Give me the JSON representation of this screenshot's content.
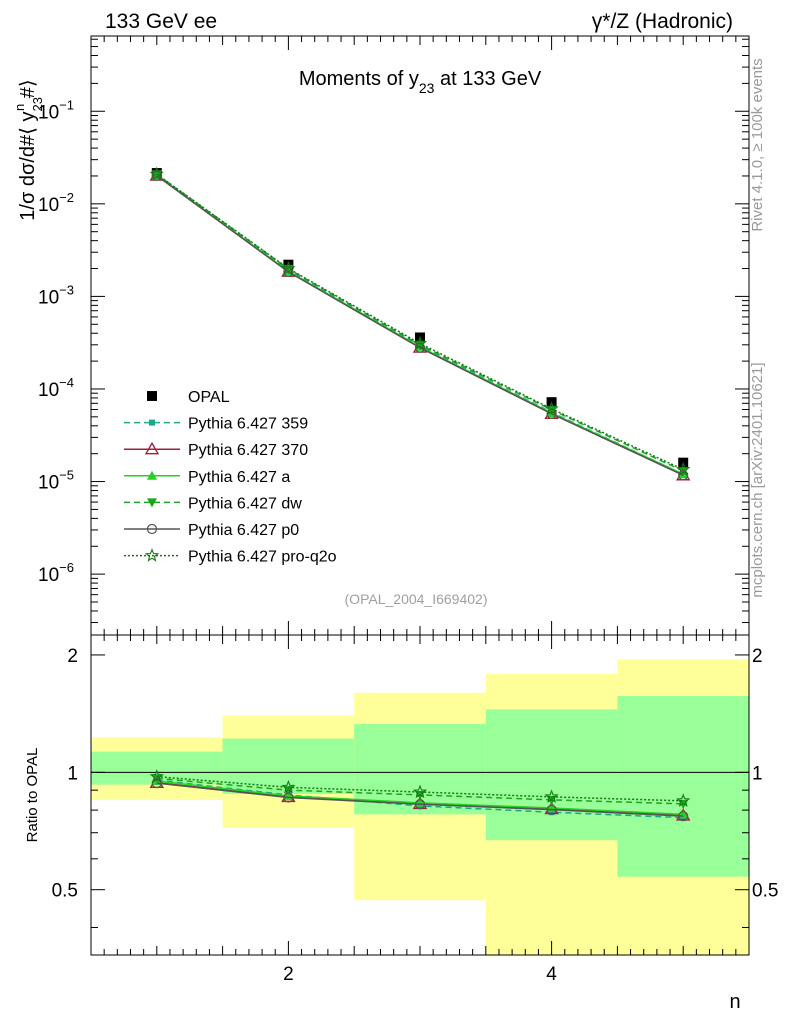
{
  "header": {
    "left": "133 GeV ee",
    "right": "γ*/Z (Hadronic)"
  },
  "side_labels": {
    "rivet": "Rivet 4.1.0, ≥ 100k events",
    "mcplots": "mcplots.cern.ch [arXiv:2401.10621]"
  },
  "chart_data": [
    {
      "type": "scatter",
      "panel": "main",
      "title": "Moments of y23 at 133 GeV",
      "title_parts": {
        "pre": "Moments of y",
        "sub": "23",
        "post": " at 133 GeV"
      },
      "ylabel": "1/σ  dσ/d#⟨ y23^n #⟩",
      "ylabel_parts": {
        "pre": "1/σ  dσ/d#⟨ y",
        "sub": "23",
        "sup": "n",
        "post": " #⟩"
      },
      "yscale": "log",
      "xlim": [
        0.5,
        5.5
      ],
      "ylim": [
        2.2e-07,
        0.65
      ],
      "ytick_labels": [
        {
          "value": 1e-06,
          "base": "10",
          "exp": "−6"
        },
        {
          "value": 1e-05,
          "base": "10",
          "exp": "−5"
        },
        {
          "value": 0.0001,
          "base": "10",
          "exp": "−4"
        },
        {
          "value": 0.001,
          "base": "10",
          "exp": "−3"
        },
        {
          "value": 0.01,
          "base": "10",
          "exp": "−2"
        },
        {
          "value": 0.1,
          "base": "10",
          "exp": "−1"
        }
      ],
      "watermark": "(OPAL_2004_I669402)",
      "x": [
        1,
        2,
        3,
        4,
        5
      ],
      "series": [
        {
          "name": "OPAL",
          "color": "#000000",
          "dash": "",
          "marker": "square",
          "values": [
            0.0215,
            0.0022,
            0.00036,
            7.2e-05,
            1.6e-05
          ]
        },
        {
          "name": "Pythia 6.427 359",
          "color": "#19a98a",
          "dash": "6,4",
          "marker": "smallsquare",
          "values": [
            0.0207,
            0.00193,
            0.000292,
            5.6e-05,
            1.2e-05
          ]
        },
        {
          "name": "Pythia 6.427 370",
          "color": "#a0203c",
          "dash": "",
          "marker": "triangle",
          "values": [
            0.0202,
            0.00185,
            0.00028,
            5.4e-05,
            1.17e-05
          ]
        },
        {
          "name": "Pythia 6.427 a",
          "color": "#23d323",
          "dash": "",
          "marker": "triangle-filled",
          "values": [
            0.0203,
            0.00187,
            0.000285,
            5.5e-05,
            1.2e-05
          ]
        },
        {
          "name": "Pythia 6.427 dw",
          "color": "#1ea51e",
          "dash": "6,4",
          "marker": "triangle-down-filled",
          "values": [
            0.0208,
            0.00198,
            0.0003,
            5.95e-05,
            1.3e-05
          ]
        },
        {
          "name": "Pythia 6.427 p0",
          "color": "#555555",
          "dash": "",
          "marker": "circle",
          "values": [
            0.0201,
            0.00184,
            0.000279,
            5.4e-05,
            1.17e-05
          ]
        },
        {
          "name": "Pythia 6.427 pro-q2o",
          "color": "#127a12",
          "dash": "2,2",
          "marker": "star",
          "values": [
            0.0209,
            0.002,
            0.00031,
            6.1e-05,
            1.35e-05
          ]
        }
      ]
    },
    {
      "type": "line",
      "panel": "ratio",
      "ylabel": "Ratio to OPAL",
      "xlabel": "n",
      "ylim": [
        0.34,
        2.25
      ],
      "xlim": [
        0.5,
        5.5
      ],
      "xtick_labels": [
        {
          "value": 2,
          "label": "2"
        },
        {
          "value": 4,
          "label": "4"
        }
      ],
      "ytick_labels": [
        {
          "value": 0.5,
          "label": "0.5"
        },
        {
          "value": 1,
          "label": "1"
        },
        {
          "value": 2,
          "label": "2"
        }
      ],
      "reference": 1,
      "bands": {
        "bins": [
          [
            0.5,
            1.5
          ],
          [
            1.5,
            2.5
          ],
          [
            2.5,
            3.5
          ],
          [
            3.5,
            4.5
          ],
          [
            4.5,
            5.5
          ]
        ],
        "total": [
          [
            0.85,
            1.23
          ],
          [
            0.72,
            1.4
          ],
          [
            0.47,
            1.6
          ],
          [
            0.34,
            1.79
          ],
          [
            0.34,
            1.95
          ]
        ],
        "stat": [
          [
            0.93,
            1.13
          ],
          [
            0.88,
            1.22
          ],
          [
            0.78,
            1.33
          ],
          [
            0.67,
            1.45
          ],
          [
            0.54,
            1.57
          ]
        ],
        "total_color": "#ffff99",
        "stat_color": "#99ff99"
      },
      "series": [
        {
          "name": "Pythia 6.427 359",
          "color": "#19a98a",
          "dash": "6,4",
          "marker": "smallsquare",
          "values": [
            0.955,
            0.875,
            0.82,
            0.79,
            0.765
          ]
        },
        {
          "name": "Pythia 6.427 370",
          "color": "#a0203c",
          "dash": "",
          "marker": "triangle",
          "values": [
            0.94,
            0.865,
            0.83,
            0.805,
            0.775
          ]
        },
        {
          "name": "Pythia 6.427 a",
          "color": "#23d323",
          "dash": "",
          "marker": "triangle-filled",
          "values": [
            0.95,
            0.87,
            0.835,
            0.81,
            0.78
          ]
        },
        {
          "name": "Pythia 6.427 dw",
          "color": "#1ea51e",
          "dash": "6,4",
          "marker": "triangle-down-filled",
          "values": [
            0.965,
            0.9,
            0.875,
            0.85,
            0.83
          ]
        },
        {
          "name": "Pythia 6.427 p0",
          "color": "#555555",
          "dash": "",
          "marker": "circle",
          "values": [
            0.938,
            0.862,
            0.828,
            0.802,
            0.772
          ]
        },
        {
          "name": "Pythia 6.427 pro-q2o",
          "color": "#127a12",
          "dash": "2,2",
          "marker": "star",
          "values": [
            0.975,
            0.915,
            0.89,
            0.865,
            0.845
          ]
        }
      ]
    }
  ]
}
